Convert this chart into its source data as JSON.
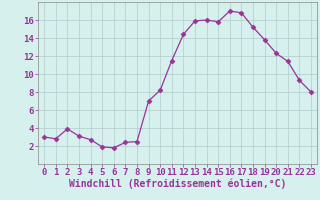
{
  "x": [
    0,
    1,
    2,
    3,
    4,
    5,
    6,
    7,
    8,
    9,
    10,
    11,
    12,
    13,
    14,
    15,
    16,
    17,
    18,
    19,
    20,
    21,
    22,
    23
  ],
  "y": [
    3.0,
    2.8,
    3.9,
    3.1,
    2.7,
    1.9,
    1.8,
    2.4,
    2.5,
    7.0,
    8.2,
    11.5,
    14.4,
    15.9,
    16.0,
    15.8,
    17.0,
    16.8,
    15.2,
    13.8,
    12.3,
    11.4,
    9.3,
    8.0
  ],
  "line_color": "#993399",
  "marker": "D",
  "marker_size": 2.5,
  "bg_color": "#d6f0ee",
  "grid_color": "#b0ccc8",
  "spine_color": "#888888",
  "xlabel": "Windchill (Refroidissement éolien,°C)",
  "xlabel_fontsize": 7,
  "tick_fontsize": 6.5,
  "ylim": [
    0,
    18
  ],
  "xlim": [
    -0.5,
    23.5
  ],
  "yticks": [
    2,
    4,
    6,
    8,
    10,
    12,
    14,
    16
  ],
  "xticks": [
    0,
    1,
    2,
    3,
    4,
    5,
    6,
    7,
    8,
    9,
    10,
    11,
    12,
    13,
    14,
    15,
    16,
    17,
    18,
    19,
    20,
    21,
    22,
    23
  ]
}
